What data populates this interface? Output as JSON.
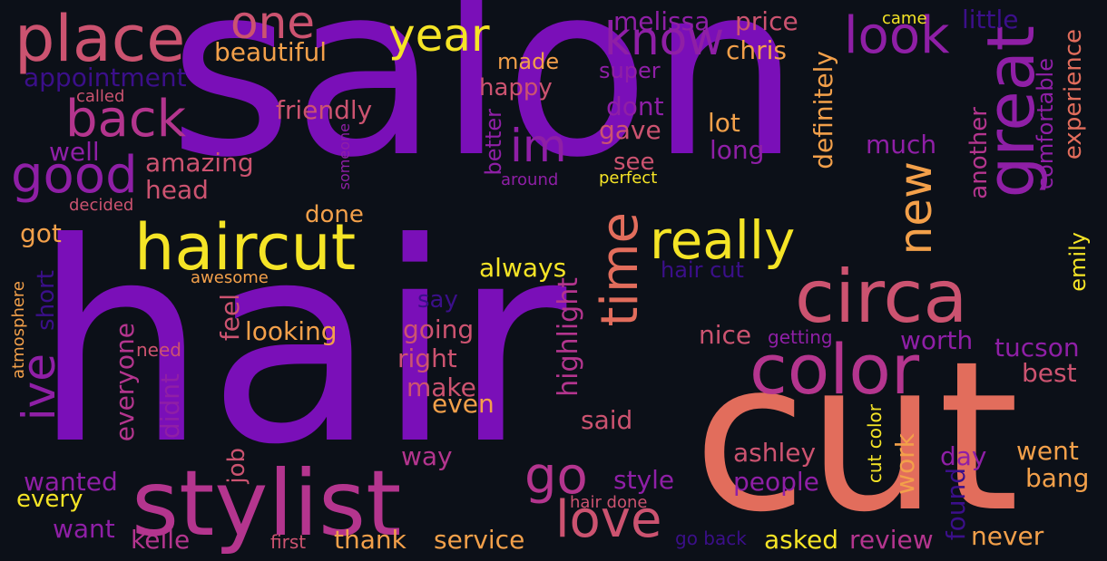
{
  "palette": {
    "violet": "#7a0fb8",
    "purple": "#8f1fa6",
    "magenta": "#b4358e",
    "pink": "#cc5370",
    "salmon": "#e26d5c",
    "orange": "#f3a04a",
    "yellow": "#f5e426",
    "indigo": "#3b0f8a"
  },
  "words": {
    "salon": "salon",
    "hair": "hair",
    "cut": "cut",
    "stylist": "stylist",
    "haircut": "haircut",
    "circa": "circa",
    "color": "color",
    "place": "place",
    "great": "great",
    "time": "time",
    "really": "really",
    "love": "love",
    "go": "go",
    "back": "back",
    "good": "good",
    "know": "know",
    "look": "look",
    "year": "year",
    "one": "one",
    "im": "im",
    "new": "new",
    "ive": "ive",
    "beautiful": "beautiful",
    "appointment": "appointment",
    "melissa": "melissa",
    "price": "price",
    "chris": "chris",
    "little": "little",
    "came": "came",
    "made": "made",
    "super": "super",
    "happy": "happy",
    "called": "called",
    "friendly": "friendly",
    "dont": "dont",
    "lot": "lot",
    "gave": "gave",
    "long": "long",
    "much": "much",
    "definitely": "definitely",
    "experience": "experience",
    "comfortable": "comfortable",
    "another": "another",
    "well": "well",
    "amazing": "amazing",
    "someone": "someone",
    "better": "better",
    "around": "around",
    "see": "see",
    "perfect": "perfect",
    "head": "head",
    "decided": "decided",
    "done": "done",
    "got": "got",
    "always": "always",
    "hair_cut": "hair cut",
    "awesome": "awesome",
    "short": "short",
    "atmosphere": "atmosphere",
    "say": "say",
    "highlight": "highlight",
    "emily": "emily",
    "feel": "feel",
    "looking": "looking",
    "going": "going",
    "nice": "nice",
    "getting": "getting",
    "worth": "worth",
    "tucson": "tucson",
    "need": "need",
    "everyone": "everyone",
    "right": "right",
    "best": "best",
    "didnt": "didnt",
    "make": "make",
    "even": "even",
    "said": "said",
    "cut_color": "cut color",
    "work": "work",
    "ashley": "ashley",
    "went": "went",
    "job": "job",
    "way": "way",
    "day": "day",
    "wanted": "wanted",
    "style": "style",
    "people": "people",
    "bang": "bang",
    "every": "every",
    "hair_done": "hair done",
    "found": "found",
    "want": "want",
    "kelle": "kelle",
    "first": "first",
    "thank": "thank",
    "service": "service",
    "go_back": "go back",
    "asked": "asked",
    "review": "review",
    "never": "never"
  }
}
